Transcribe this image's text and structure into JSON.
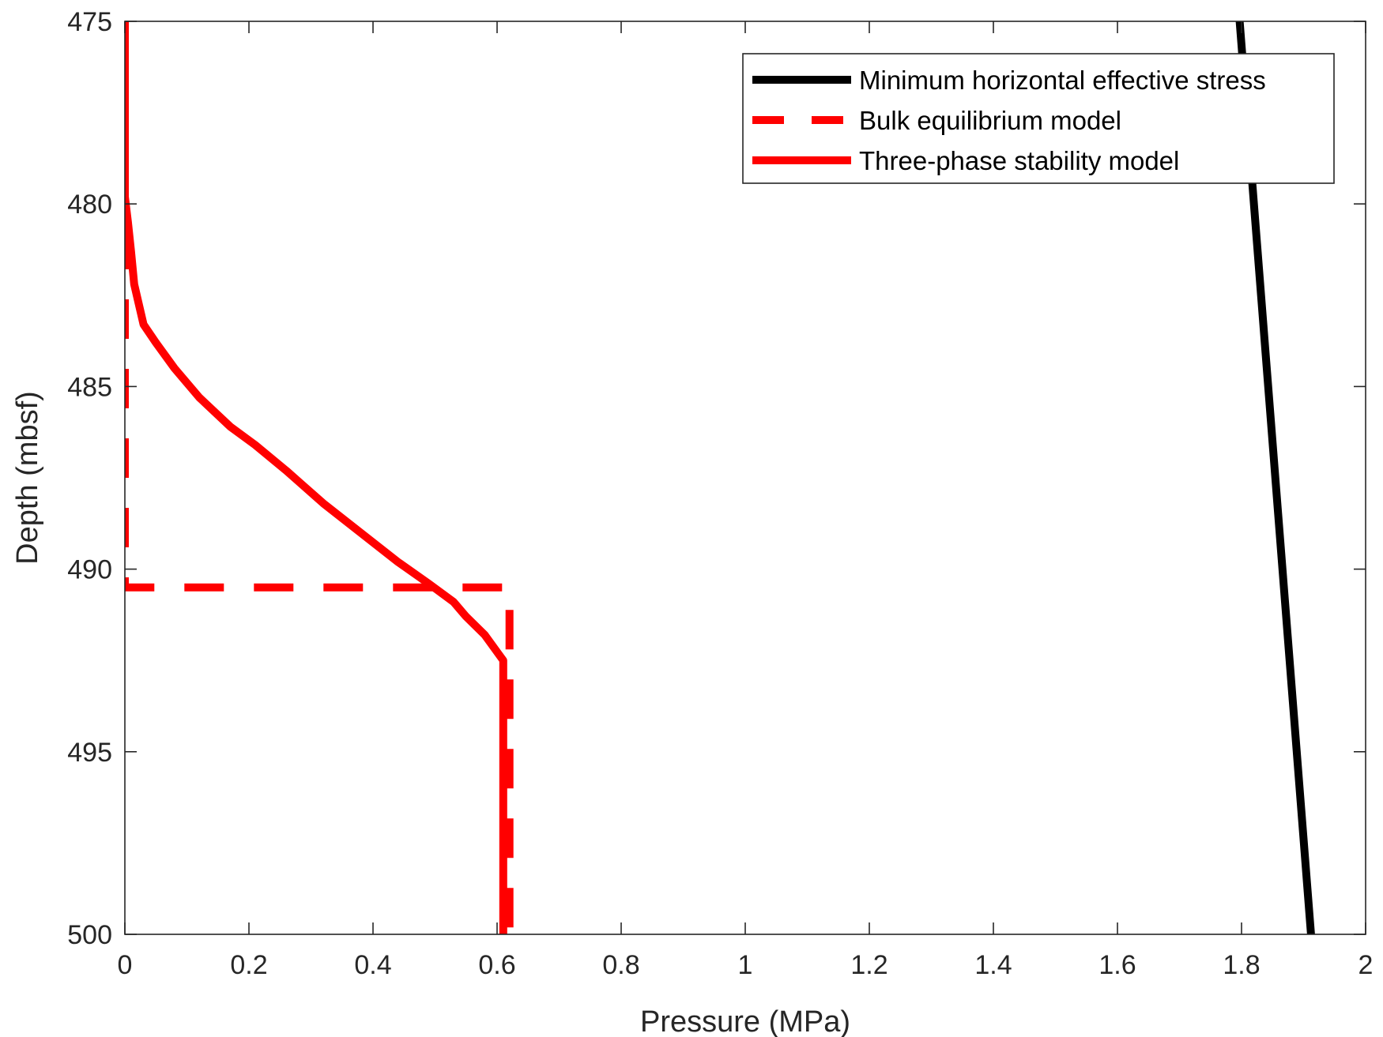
{
  "chart_data": {
    "type": "line",
    "xlabel": "Pressure (MPa)",
    "ylabel": "Depth (mbsf)",
    "xlim": [
      0,
      2
    ],
    "ylim": [
      475,
      500
    ],
    "y_reversed": true,
    "xticks": [
      0,
      0.2,
      0.4,
      0.6,
      0.8,
      1,
      1.2,
      1.4,
      1.6,
      1.8,
      2
    ],
    "xtick_labels": [
      "0",
      "0.2",
      "0.4",
      "0.6",
      "0.8",
      "1",
      "1.2",
      "1.4",
      "1.6",
      "1.8",
      "2"
    ],
    "yticks": [
      475,
      480,
      485,
      490,
      495,
      500
    ],
    "ytick_labels": [
      "475",
      "480",
      "485",
      "490",
      "495",
      "500"
    ],
    "grid": false,
    "legend_position": "top-right",
    "series": [
      {
        "name": "Minimum horizontal effective stress",
        "color": "#000000",
        "style": "solid",
        "points": [
          [
            1.797,
            475
          ],
          [
            1.912,
            500
          ]
        ]
      },
      {
        "name": "Bulk equilibrium model",
        "color": "#ff0000",
        "style": "dashed",
        "points": [
          [
            0.0,
            475
          ],
          [
            0.0,
            490.5
          ],
          [
            0.62,
            490.5
          ],
          [
            0.62,
            500
          ]
        ]
      },
      {
        "name": "Three-phase stability model",
        "color": "#ff0000",
        "style": "solid",
        "points": [
          [
            0.0,
            475
          ],
          [
            0.0,
            479.8
          ],
          [
            0.005,
            480.5
          ],
          [
            0.01,
            481.3
          ],
          [
            0.015,
            482.2
          ],
          [
            0.03,
            483.3
          ],
          [
            0.05,
            483.8
          ],
          [
            0.08,
            484.5
          ],
          [
            0.12,
            485.3
          ],
          [
            0.17,
            486.1
          ],
          [
            0.21,
            486.6
          ],
          [
            0.26,
            487.3
          ],
          [
            0.32,
            488.2
          ],
          [
            0.38,
            489.0
          ],
          [
            0.44,
            489.8
          ],
          [
            0.49,
            490.4
          ],
          [
            0.53,
            490.9
          ],
          [
            0.55,
            491.3
          ],
          [
            0.58,
            491.8
          ],
          [
            0.61,
            492.5
          ],
          [
            0.61,
            494.0
          ],
          [
            0.61,
            500
          ]
        ]
      }
    ]
  }
}
